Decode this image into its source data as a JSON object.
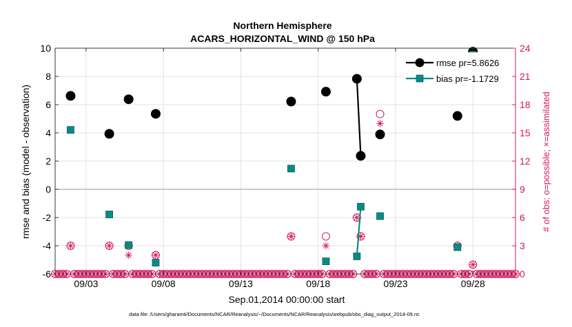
{
  "chart_data": {
    "type": "line",
    "title": [
      "Northern Hemisphere",
      "ACARS_HORIZONTAL_WIND @ 150 hPa"
    ],
    "xlabel": "Sep.01,2014 00:00:00 start",
    "ylabel": "rmse and bias (model - observation)",
    "y2label": "# of obs: o=possible; ×=assimilated",
    "footer": "data file: /Users/gharamti/Documents/NCAR/Reanalysis/~/Documents/NCAR/Reanalysis/webpub/obs_diag_output_2014-09.nc",
    "xlim": [
      1,
      30.75
    ],
    "ylim": [
      -6,
      10
    ],
    "y2lim": [
      0,
      24
    ],
    "x_ticks": [
      {
        "x": 3,
        "label": "09/03"
      },
      {
        "x": 8,
        "label": "09/08"
      },
      {
        "x": 13,
        "label": "09/13"
      },
      {
        "x": 18,
        "label": "09/18"
      },
      {
        "x": 23,
        "label": "09/23"
      },
      {
        "x": 28,
        "label": "09/28"
      }
    ],
    "y_ticks": [
      -6,
      -4,
      -2,
      0,
      2,
      4,
      6,
      8,
      10
    ],
    "y2_ticks": [
      0,
      3,
      6,
      9,
      12,
      15,
      18,
      21,
      24
    ],
    "zero_line": 0,
    "legend": {
      "position": "top-right",
      "entries": [
        {
          "name": "rmse",
          "label": "rmse pr=5.8626",
          "color": "#000000",
          "marker": "circle"
        },
        {
          "name": "bias",
          "label": "bias pr=-1.1729",
          "color": "#008080",
          "marker": "square"
        }
      ]
    },
    "colors": {
      "rmse": "#000000",
      "bias": "#0b8a85",
      "obs": "#d6155e",
      "grid": "#e3e3e3",
      "zero": "#b8b8b8"
    },
    "series": [
      {
        "name": "rmse",
        "points": [
          {
            "x": 2.0,
            "y": 6.62
          },
          {
            "x": 4.5,
            "y": 3.93
          },
          {
            "x": 5.75,
            "y": 6.38
          },
          {
            "x": 7.5,
            "y": 5.35
          },
          {
            "x": 16.25,
            "y": 6.22
          },
          {
            "x": 18.5,
            "y": 6.92
          },
          {
            "x": 20.5,
            "y": 7.83
          },
          {
            "x": 20.75,
            "y": 2.37
          },
          {
            "x": 22.0,
            "y": 3.89
          },
          {
            "x": 27.0,
            "y": 5.2
          },
          {
            "x": 28.0,
            "y": 9.75
          }
        ],
        "segments": [
          [
            20.5,
            20.75
          ]
        ]
      },
      {
        "name": "bias",
        "points": [
          {
            "x": 2.0,
            "y": 4.21
          },
          {
            "x": 4.5,
            "y": -1.78
          },
          {
            "x": 5.75,
            "y": -3.95
          },
          {
            "x": 7.5,
            "y": -5.2
          },
          {
            "x": 16.25,
            "y": 1.47
          },
          {
            "x": 18.5,
            "y": -5.1
          },
          {
            "x": 20.5,
            "y": -4.75
          },
          {
            "x": 20.75,
            "y": -1.23
          },
          {
            "x": 22.0,
            "y": -1.9
          },
          {
            "x": 27.0,
            "y": -4.1
          },
          {
            "x": 28.0,
            "y": 9.55
          }
        ],
        "segments": [
          [
            20.5,
            20.75
          ]
        ]
      }
    ],
    "obs_counts": {
      "start": 1.0,
      "step": 0.25,
      "count": 120,
      "nonzero": [
        {
          "x": 2.0,
          "possible": 3,
          "assimilated": 3
        },
        {
          "x": 4.5,
          "possible": 3,
          "assimilated": 3
        },
        {
          "x": 5.75,
          "possible": 3,
          "assimilated": 2
        },
        {
          "x": 7.5,
          "possible": 2,
          "assimilated": 2
        },
        {
          "x": 16.25,
          "possible": 4,
          "assimilated": 4
        },
        {
          "x": 18.5,
          "possible": 4,
          "assimilated": 3
        },
        {
          "x": 20.5,
          "possible": 6,
          "assimilated": 6
        },
        {
          "x": 20.75,
          "possible": 4,
          "assimilated": 4
        },
        {
          "x": 22.0,
          "possible": 17,
          "assimilated": 16
        },
        {
          "x": 27.0,
          "possible": 3,
          "assimilated": 3
        },
        {
          "x": 28.0,
          "possible": 1,
          "assimilated": 1
        }
      ]
    }
  }
}
